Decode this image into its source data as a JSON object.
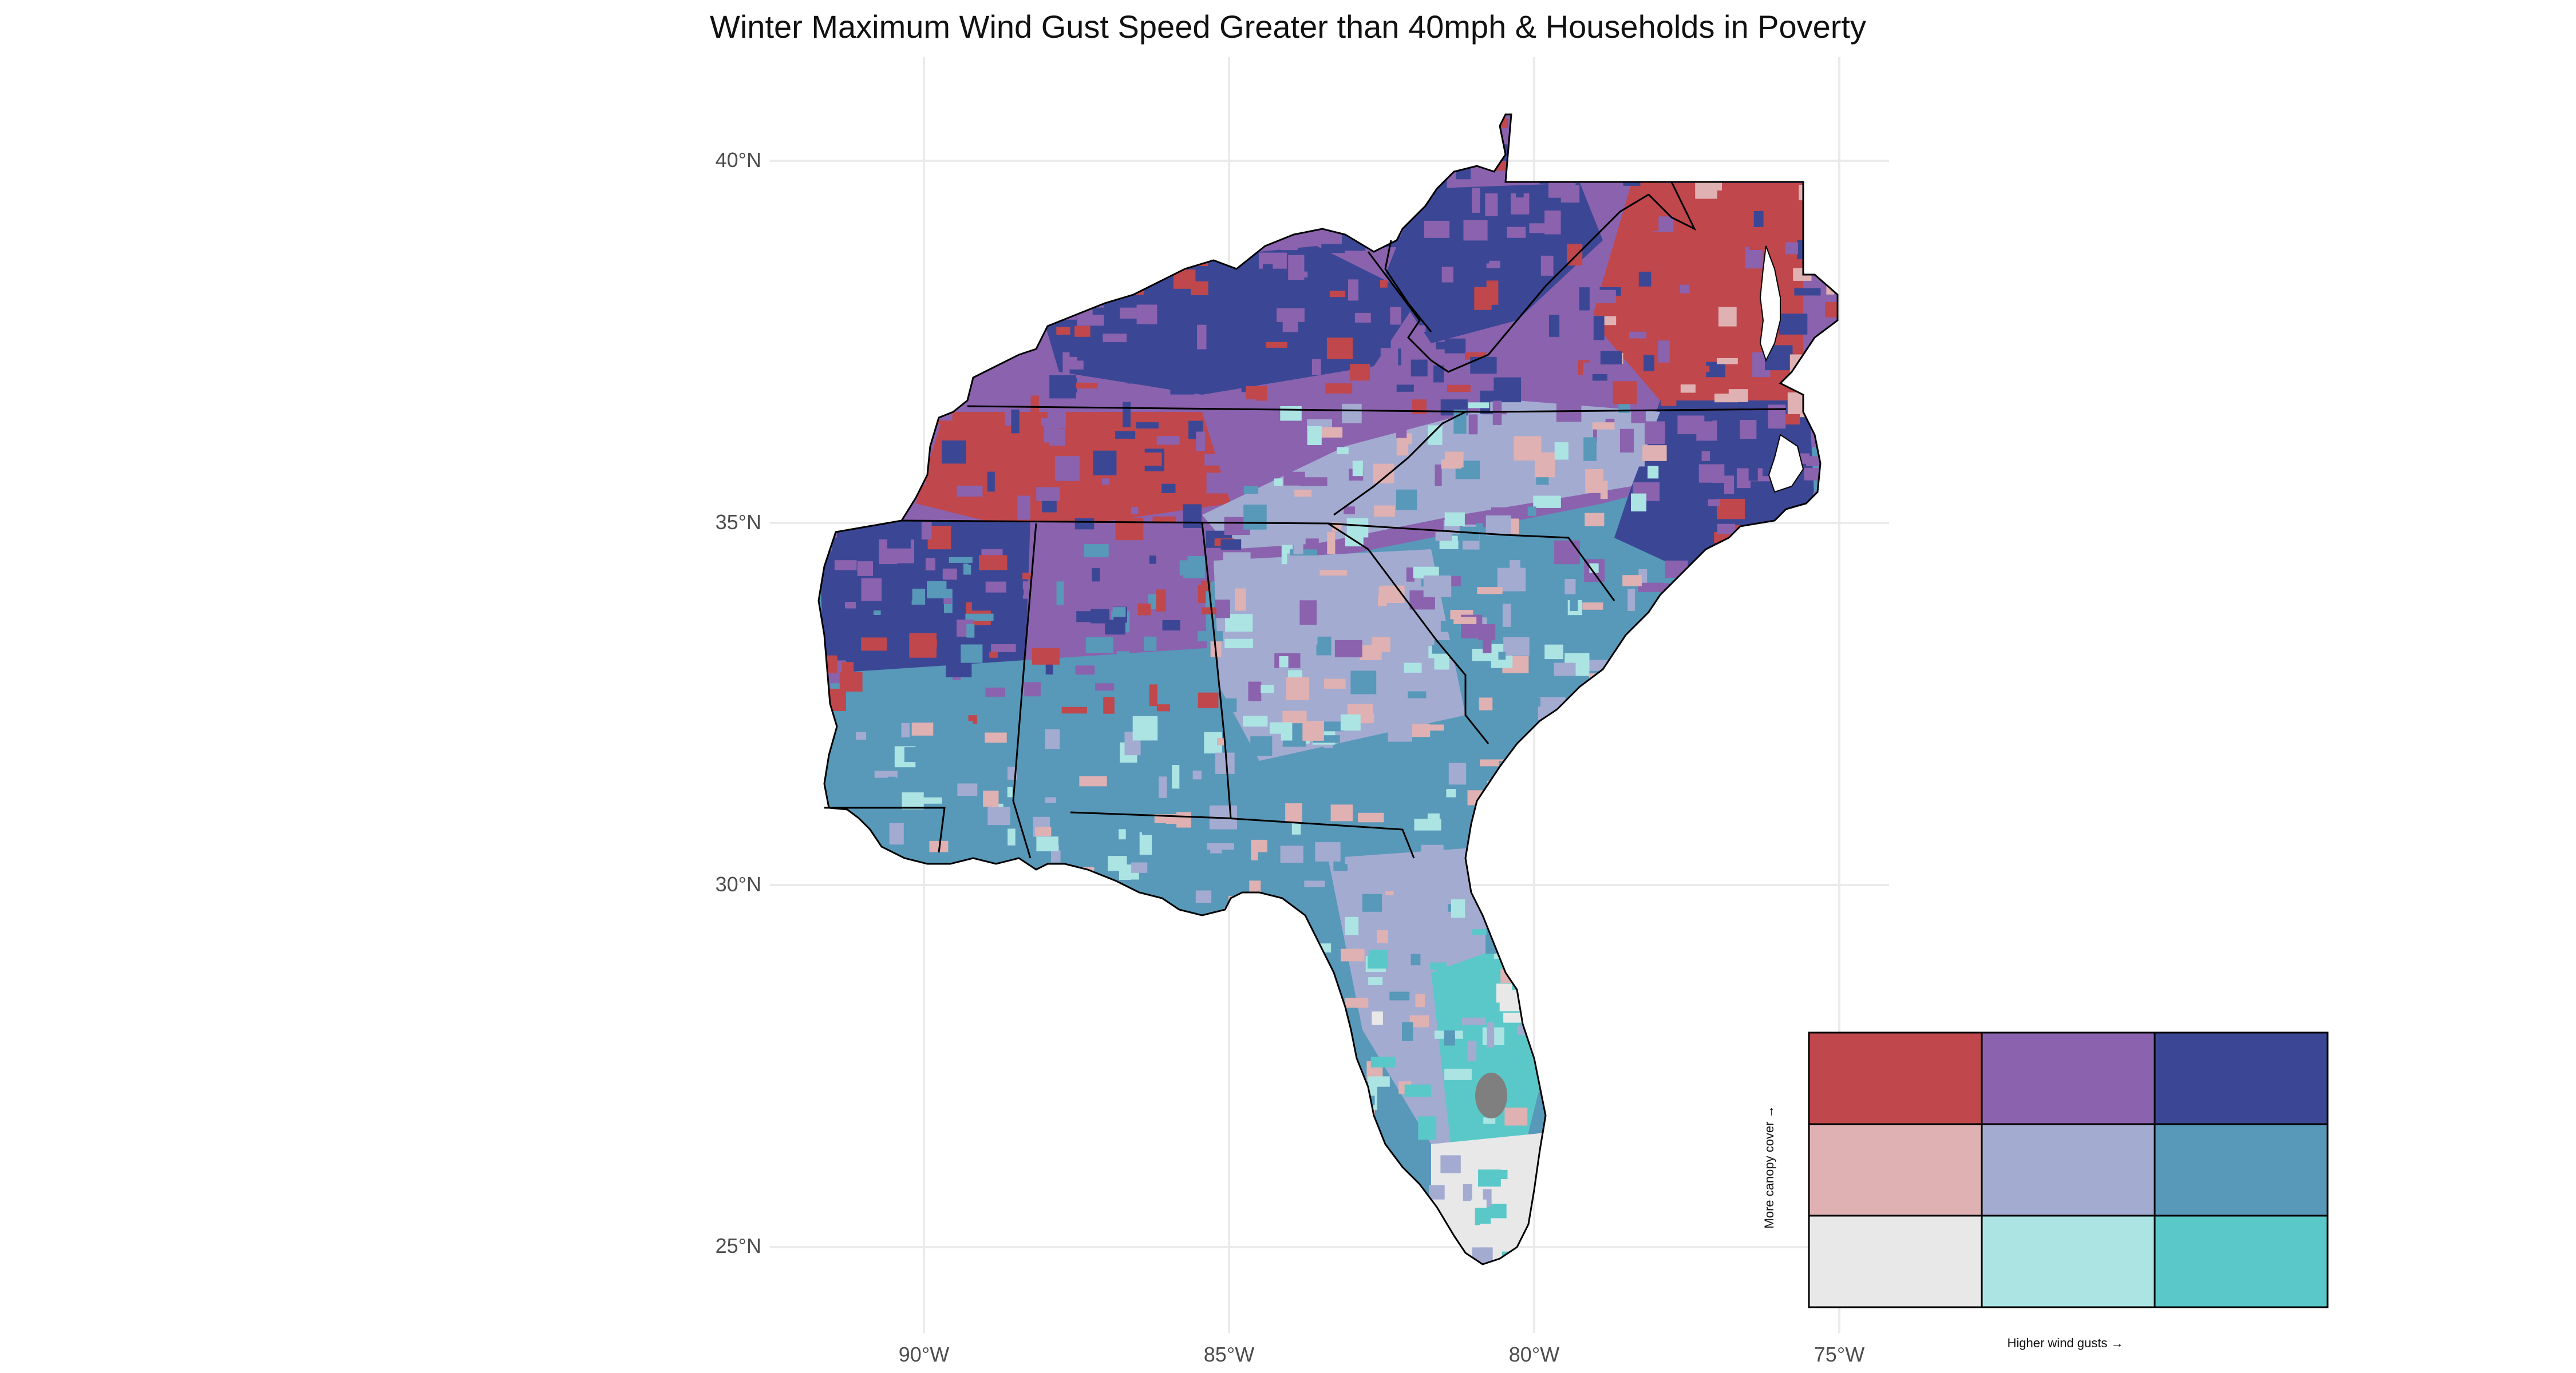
{
  "title": "Winter Maximum Wind Gust Speed Greater than 40mph & Households in Poverty",
  "axes": {
    "lat_labels": [
      "40°N",
      "35°N",
      "30°N",
      "25°N"
    ],
    "lon_labels": [
      "90°W",
      "85°W",
      "80°W",
      "75°W"
    ],
    "lat_values": [
      40,
      35,
      30,
      25
    ],
    "lon_values": [
      -90,
      -85,
      -80,
      -75
    ],
    "grid": true
  },
  "legend": {
    "x_label": "Higher wind gusts →",
    "y_label": "More canopy cover →",
    "placement": "bottom-right",
    "grid_colors": [
      [
        "#c0474b",
        "#8b62ae",
        "#3b4795"
      ],
      [
        "#dfb1b2",
        "#a3abd1",
        "#5898b9"
      ],
      [
        "#e8e8e8",
        "#ace4e4",
        "#5ac8c8"
      ]
    ]
  },
  "colors": {
    "high_high": "#3b4795",
    "high_mid": "#8b62ae",
    "high_low": "#c0474b",
    "mid_high": "#5898b9",
    "mid_mid": "#a3abd1",
    "mid_low": "#dfb1b2",
    "low_high": "#5ac8c8",
    "low_mid": "#ace4e4",
    "low_low": "#e8e8e8",
    "no_data": "#7f7f7f",
    "grid": "#ebebeb",
    "border": "#000000"
  }
}
